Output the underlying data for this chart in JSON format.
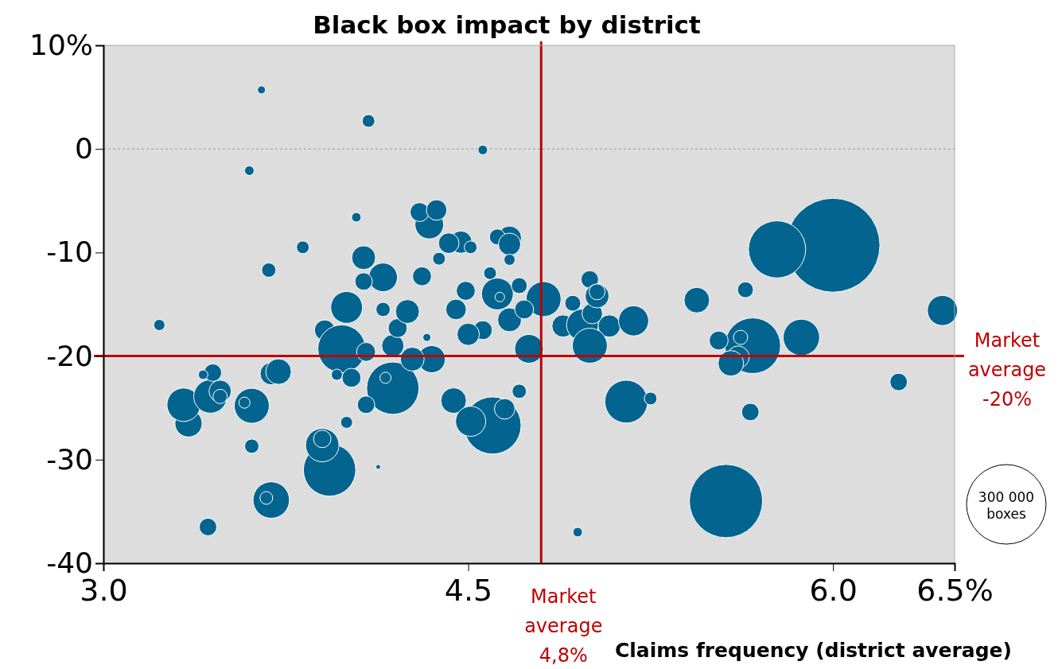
{
  "chart_data": {
    "type": "bubble",
    "title": "Black box impact by district",
    "xlabel": "Claims frequency (district average)",
    "xlim": [
      3,
      6.5
    ],
    "xticks": [
      {
        "value": 3,
        "label": "3.0"
      },
      4.5,
      {
        "value": 6,
        "label": "6.0"
      },
      {
        "value": 6.5,
        "label": "6.5%"
      }
    ],
    "ylim": [
      -40,
      10
    ],
    "yticks": [
      {
        "value": 10,
        "label": "10%"
      },
      0,
      -10,
      -20,
      -30,
      -40
    ],
    "grid": false,
    "size_legend": [
      {
        "value": 300000,
        "label": "300 000 boxes"
      }
    ],
    "ref_lines": [
      {
        "axis": "y",
        "value": 0,
        "color": "#999999",
        "line_style": "dotted"
      },
      {
        "axis": "x",
        "value": 4.8,
        "label": "Market average 4,8%",
        "color": "#c00000"
      },
      {
        "axis": "y",
        "value": -20,
        "label": "Market average -20%",
        "color": "#c00000"
      }
    ],
    "series": [
      {
        "color": "#02648f",
        "x": [
          3.65,
          4.09,
          3.6,
          4.56,
          4.04,
          3.82,
          3.68,
          3.23,
          4.07,
          4.15,
          4.07,
          4.0,
          3.91,
          3.98,
          4.19,
          3.93,
          3.9,
          3.9,
          3.69,
          3.67,
          3.43,
          3.61,
          4.0,
          4.13,
          3.35,
          3.33,
          3.44,
          3.48,
          3.48,
          3.45,
          3.41,
          3.61,
          3.58,
          3.69,
          3.72,
          4.08,
          3.96,
          4.02,
          4.08,
          4.19,
          4.21,
          4.15,
          4.16,
          4.34,
          4.3,
          4.37,
          4.47,
          4.42,
          4.51,
          4.38,
          4.67,
          4.62,
          4.67,
          4.67,
          4.31,
          4.59,
          4.49,
          4.62,
          4.63,
          4.71,
          4.81,
          4.45,
          4.25,
          4.33,
          4.67,
          4.73,
          4.56,
          4.5,
          4.75,
          4.93,
          4.89,
          4.97,
          5.01,
          5.0,
          5.03,
          5.03,
          5.08,
          5.0,
          5.18,
          5.15,
          5.25,
          4.44,
          4.6,
          4.51,
          4.65,
          4.71,
          4.35,
          4.27,
          4.95,
          6.0,
          5.77,
          5.64,
          5.44,
          6.45,
          5.67,
          5.87,
          5.53,
          5.62,
          5.61,
          5.58,
          6.27,
          5.66,
          5.56
        ],
        "values": [
          5.7,
          2.7,
          -2.1,
          -0.1,
          -6.6,
          -9.5,
          -11.7,
          -17.0,
          -10.5,
          -12.4,
          -12.8,
          -15.3,
          -17.5,
          -19.3,
          -23.1,
          -31.0,
          -28.6,
          -28.0,
          -33.9,
          -33.7,
          -36.5,
          -28.7,
          -26.4,
          -30.7,
          -26.5,
          -24.7,
          -23.9,
          -23.4,
          -23.9,
          -21.6,
          -21.8,
          -24.8,
          -24.5,
          -21.7,
          -21.5,
          -19.6,
          -21.8,
          -22.1,
          -24.7,
          -19.0,
          -17.3,
          -15.5,
          -22.1,
          -7.3,
          -6.1,
          -5.9,
          -9.0,
          -9.1,
          -9.5,
          -10.6,
          -8.6,
          -8.5,
          -9.2,
          -10.7,
          -12.3,
          -12.0,
          -13.7,
          -14.0,
          -14.3,
          -13.2,
          -14.5,
          -15.5,
          -15.7,
          -18.2,
          -16.5,
          -15.5,
          -17.5,
          -17.9,
          -19.3,
          -14.9,
          -17.1,
          -17.0,
          -15.9,
          -12.6,
          -14.2,
          -13.8,
          -17.1,
          -19.0,
          -16.6,
          -24.4,
          -24.1,
          -24.3,
          -26.7,
          -26.3,
          -25.1,
          -23.4,
          -20.3,
          -20.3,
          -37.0,
          -9.3,
          -9.7,
          -13.6,
          -14.6,
          -15.6,
          -19.0,
          -18.2,
          -18.5,
          -18.2,
          -20.1,
          -20.7,
          -22.5,
          -25.4,
          -34.0
        ],
        "sizes": [
          3000,
          7700,
          4300,
          4300,
          4300,
          7700,
          9700,
          5900,
          27000,
          39000,
          14500,
          48000,
          20000,
          108000,
          130000,
          130000,
          53000,
          14500,
          63000,
          7700,
          14500,
          9700,
          6800,
          1100,
          35000,
          53000,
          53000,
          23500,
          9700,
          14500,
          4300,
          58000,
          5900,
          23500,
          31000,
          17000,
          5900,
          17000,
          14500,
          23500,
          17000,
          9700,
          5900,
          39000,
          17000,
          20000,
          23500,
          20000,
          7700,
          7700,
          27000,
          12000,
          23500,
          5900,
          17000,
          7700,
          17000,
          48000,
          4300,
          12000,
          58000,
          20000,
          27000,
          3000,
          27000,
          17000,
          17000,
          23500,
          39000,
          12000,
          23500,
          48000,
          20000,
          14500,
          27000,
          12000,
          23500,
          58000,
          43000,
          87000,
          7700,
          31000,
          155000,
          43000,
          20000,
          9700,
          35000,
          27000,
          4300,
          418000,
          155000,
          12000,
          31000,
          43000,
          147000,
          63000,
          17000,
          9700,
          23500,
          31000,
          14500,
          14500,
          254000
        ]
      }
    ]
  }
}
